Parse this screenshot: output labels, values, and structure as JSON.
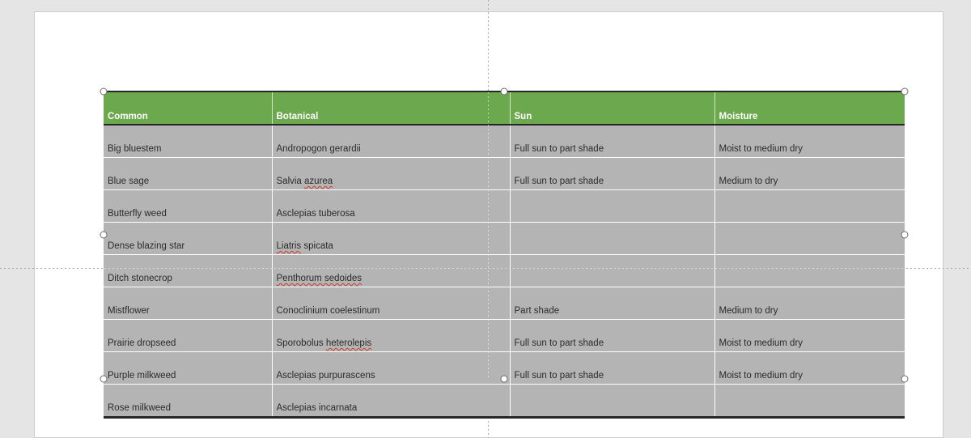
{
  "colors": {
    "app_bg": "#e5e5e5",
    "slide_bg": "#ffffff",
    "slide_edge": "#cccccc",
    "header_green": "#6CA84D",
    "header_text": "#ffffff",
    "cell_gray": "#b4b4b4",
    "cell_text": "#2b2b2b",
    "table_border_dark": "#262626",
    "guide_gray": "#a9a9a9",
    "squiggle_red": "#cc3b2f",
    "handle_border": "#6e6e6e"
  },
  "table": {
    "columns": [
      "Common",
      "Botanical",
      "Sun",
      "Moisture"
    ],
    "rows": [
      {
        "common": "Big bluestem",
        "botanical": "Andropogon gerardii",
        "sun": "Full sun to part shade",
        "moisture": "Moist to medium dry",
        "misspelled": []
      },
      {
        "common": "Blue sage",
        "botanical": "Salvia azurea",
        "sun": "Full sun to part shade",
        "moisture": "Medium to dry",
        "misspelled": [
          "azurea"
        ]
      },
      {
        "common": "Butterfly weed",
        "botanical": "Asclepias tuberosa",
        "sun": "",
        "moisture": "",
        "misspelled": []
      },
      {
        "common": "Dense blazing star",
        "botanical": "Liatris spicata",
        "sun": "",
        "moisture": "",
        "misspelled": [
          "Liatris"
        ]
      },
      {
        "common": "Ditch stonecrop",
        "botanical": "Penthorum sedoides",
        "sun": "",
        "moisture": "",
        "misspelled": [
          "Penthorum sedoides"
        ]
      },
      {
        "common": "Mistflower",
        "botanical": "Conoclinium coelestinum",
        "sun": "Part shade",
        "moisture": "Medium to dry",
        "misspelled": []
      },
      {
        "common": "Prairie dropseed",
        "botanical": "Sporobolus heterolepis",
        "sun": "Full sun to part shade",
        "moisture": "Moist to medium dry",
        "misspelled": [
          "heterolepis"
        ]
      },
      {
        "common": "Purple milkweed",
        "botanical": "Asclepias purpurascens",
        "sun": "Full sun to part shade",
        "moisture": "Moist to medium dry",
        "misspelled": []
      },
      {
        "common": "Rose milkweed",
        "botanical": "Asclepias incarnata",
        "sun": "",
        "moisture": "",
        "misspelled": []
      }
    ]
  },
  "selection": {
    "handles": [
      "top-left",
      "top-middle",
      "top-right",
      "middle-left",
      "middle-right",
      "bottom-left",
      "bottom-middle",
      "bottom-right"
    ]
  }
}
